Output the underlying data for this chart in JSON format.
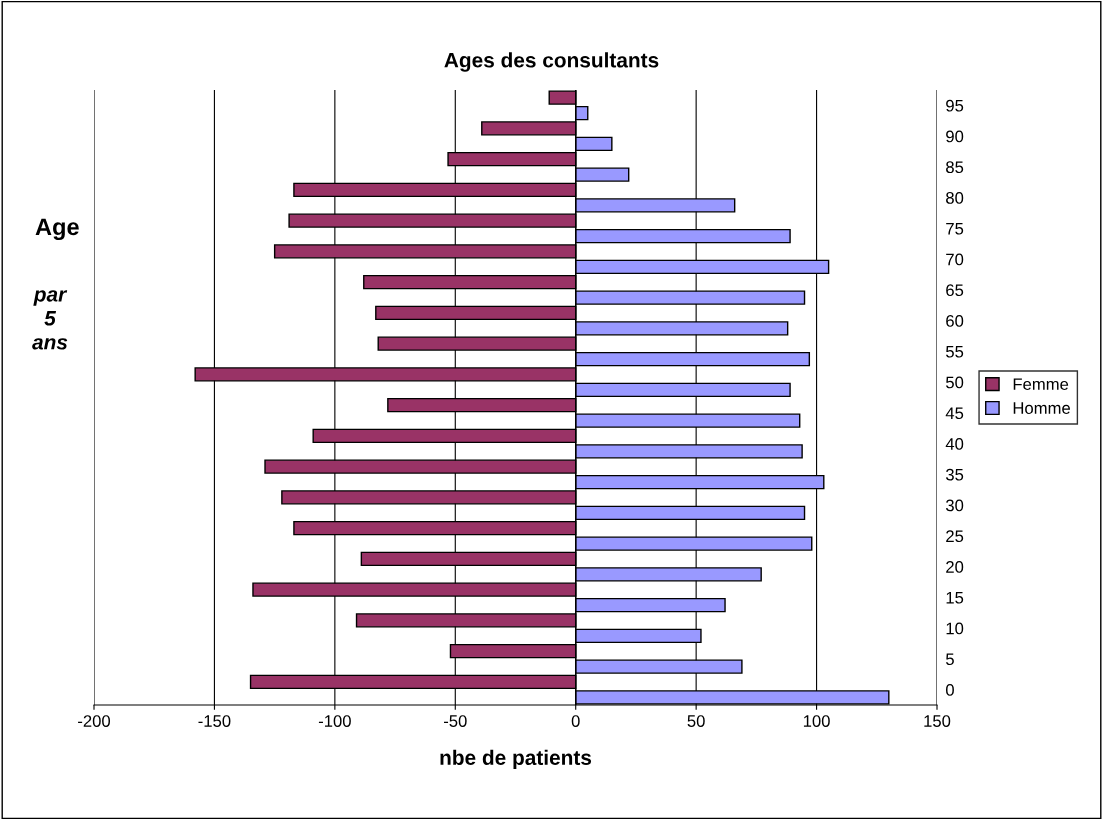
{
  "chart_data": {
    "type": "bar",
    "orientation": "horizontal",
    "title": "Ages des consultants",
    "xlabel": "nbe de patients",
    "ylabel": "Age",
    "annotations": [
      "par\n5\nans"
    ],
    "categories": [
      "95",
      "90",
      "85",
      "80",
      "75",
      "70",
      "65",
      "60",
      "55",
      "50",
      "45",
      "40",
      "35",
      "30",
      "25",
      "20",
      "15",
      "10",
      "5",
      "0"
    ],
    "series": [
      {
        "name": "Femme",
        "color": "#993366",
        "values": [
          -11,
          -39,
          -53,
          -117,
          -119,
          -125,
          -88,
          -83,
          -82,
          -158,
          -78,
          -109,
          -129,
          -122,
          -117,
          -89,
          -134,
          -91,
          -52,
          -135
        ]
      },
      {
        "name": "Homme",
        "color": "#9999ff",
        "values": [
          5,
          15,
          22,
          66,
          89,
          105,
          95,
          88,
          97,
          89,
          93,
          94,
          103,
          95,
          98,
          77,
          62,
          52,
          69,
          130
        ]
      }
    ],
    "xlim": [
      -200,
      150
    ],
    "xticks": [
      -200,
      -150,
      -100,
      -50,
      0,
      50,
      100,
      150
    ],
    "grid": "x",
    "legend": "right"
  }
}
